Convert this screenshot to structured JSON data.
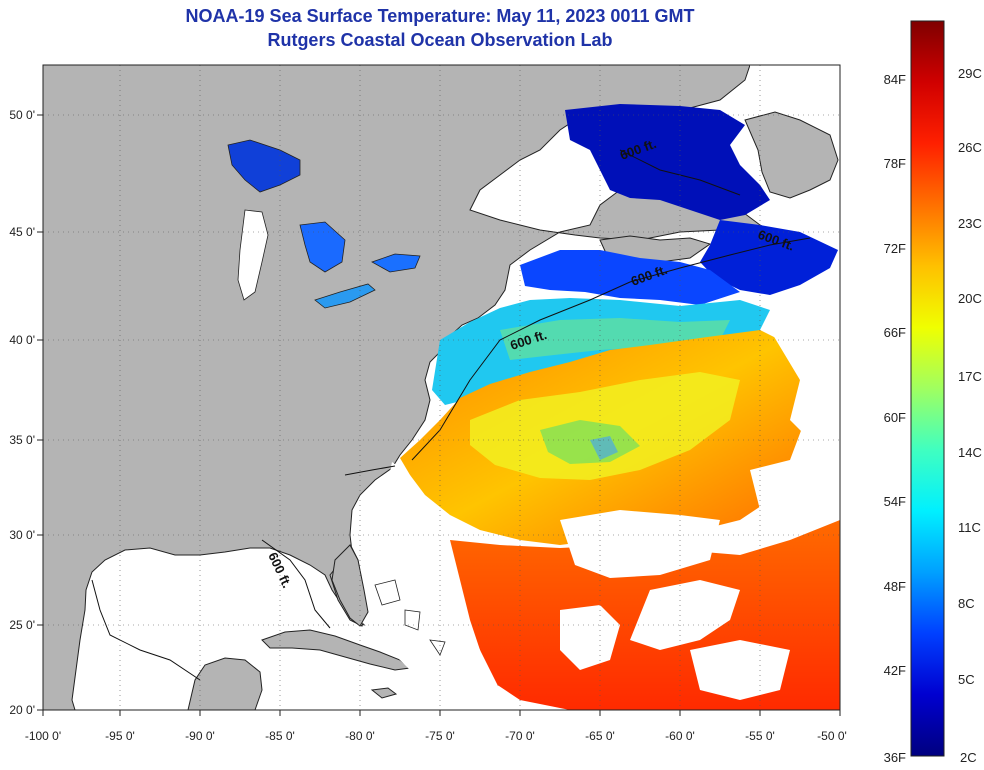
{
  "header": {
    "title": "NOAA-19 Sea Surface Temperature:  May 11, 2023 0011 GMT",
    "subtitle": "Rutgers Coastal Ocean Observation Lab"
  },
  "map": {
    "lon_ticks": [
      "-100 0'",
      "-95 0'",
      "-90 0'",
      "-85 0'",
      "-80 0'",
      "-75 0'",
      "-70 0'",
      "-65 0'",
      "-60 0'",
      "-55 0'",
      "-50 0'"
    ],
    "lat_ticks": [
      "50 0'",
      "45 0'",
      "40 0'",
      "35 0'",
      "30 0'",
      "25 0'",
      "20 0'"
    ],
    "contour_labels": [
      "600 ft.",
      "600 ft.",
      "600 ft.",
      "600 ft.",
      "600 ft."
    ],
    "colors": {
      "land": "#b4b4b4",
      "cloud": "#ffffff"
    }
  },
  "colorbar": {
    "fahrenheit_labels": [
      "84F",
      "78F",
      "72F",
      "66F",
      "60F",
      "54F",
      "48F",
      "42F",
      "36F"
    ],
    "celsius_labels": [
      "29C",
      "26C",
      "23C",
      "20C",
      "17C",
      "14C",
      "11C",
      "8C",
      "5C",
      "2C"
    ],
    "stops": [
      "#00007f",
      "#0000d0",
      "#0040ff",
      "#00a0ff",
      "#00f0ff",
      "#40ffc0",
      "#a0ff60",
      "#f0ff00",
      "#ffc000",
      "#ff7000",
      "#ff2000",
      "#d00000",
      "#7f0000"
    ]
  }
}
